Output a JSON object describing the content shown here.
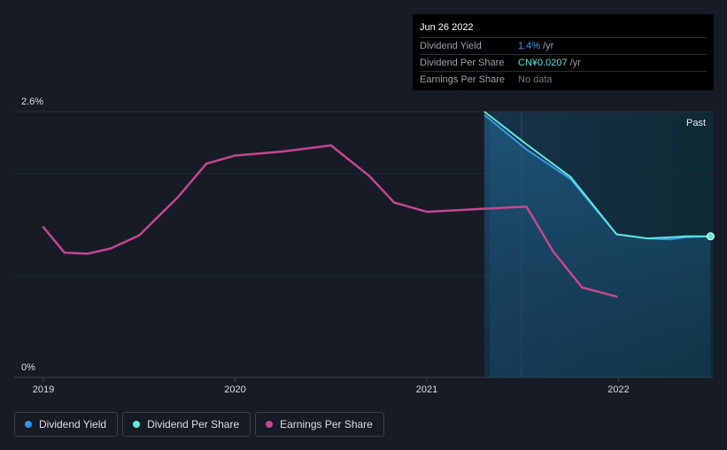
{
  "chart_data": {
    "type": "line",
    "y_axis": {
      "min": 0,
      "max": 2.6,
      "unit": "%",
      "tick_labels": [
        "2.6%",
        "0%"
      ]
    },
    "x_axis": {
      "ticks": [
        "2019",
        "2020",
        "2021",
        "2022"
      ]
    },
    "past_label": "Past",
    "series": [
      {
        "name": "Earnings Per Share",
        "color": "#c5468e",
        "points": [
          [
            2019.0,
            1.47
          ],
          [
            2019.11,
            1.22
          ],
          [
            2019.23,
            1.21
          ],
          [
            2019.35,
            1.26
          ],
          [
            2019.5,
            1.39
          ],
          [
            2019.7,
            1.76
          ],
          [
            2019.85,
            2.09
          ],
          [
            2020.0,
            2.17
          ],
          [
            2020.25,
            2.21
          ],
          [
            2020.5,
            2.27
          ],
          [
            2020.7,
            1.97
          ],
          [
            2020.83,
            1.71
          ],
          [
            2021.0,
            1.62
          ],
          [
            2021.3,
            1.65
          ],
          [
            2021.52,
            1.67
          ],
          [
            2021.66,
            1.23
          ],
          [
            2021.81,
            0.88
          ],
          [
            2021.99,
            0.79
          ]
        ]
      },
      {
        "name": "Dividend Per Share",
        "color": "#5be8e0",
        "points": [
          [
            2021.3,
            2.6
          ],
          [
            2021.52,
            2.28
          ],
          [
            2021.75,
            1.96
          ],
          [
            2021.99,
            1.4
          ],
          [
            2022.15,
            1.36
          ],
          [
            2022.27,
            1.37
          ],
          [
            2022.35,
            1.38
          ],
          [
            2022.48,
            1.38
          ]
        ]
      },
      {
        "name": "Dividend Yield",
        "color": "#3d9ae8",
        "points": [
          [
            2021.3,
            2.57
          ],
          [
            2021.52,
            2.23
          ],
          [
            2021.75,
            1.94
          ],
          [
            2021.99,
            1.4
          ],
          [
            2022.15,
            1.36
          ],
          [
            2022.27,
            1.35
          ],
          [
            2022.35,
            1.37
          ],
          [
            2022.48,
            1.38
          ]
        ]
      }
    ]
  },
  "tooltip": {
    "date": "Jun 26 2022",
    "rows": [
      {
        "label": "Dividend Yield",
        "value": "1.4%",
        "unit": "/yr"
      },
      {
        "label": "Dividend Per Share",
        "value": "CN¥0.0207",
        "unit": "/yr"
      },
      {
        "label": "Earnings Per Share",
        "value": "No data"
      }
    ]
  },
  "legend": [
    {
      "label": "Dividend Yield",
      "color": "#2e93e8"
    },
    {
      "label": "Dividend Per Share",
      "color": "#5be8e0"
    },
    {
      "label": "Earnings Per Share",
      "color": "#c5468e"
    }
  ]
}
